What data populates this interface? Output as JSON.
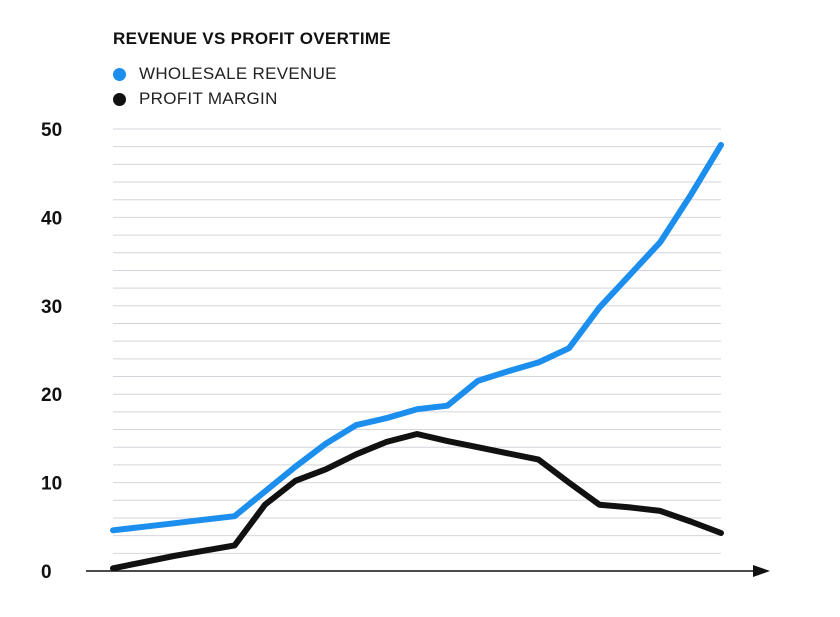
{
  "chart_data": {
    "type": "line",
    "title": "REVENUE VS PROFIT OVERTIME",
    "xlabel": "",
    "ylabel": "",
    "ylim": [
      0,
      50
    ],
    "yticks": [
      0,
      10,
      20,
      30,
      40,
      50
    ],
    "grid": true,
    "legend": "top-left",
    "x": [
      0,
      1,
      2,
      3,
      4,
      5,
      6,
      7,
      8,
      9,
      10,
      11,
      12,
      13,
      14,
      15,
      16,
      17,
      18,
      19,
      20
    ],
    "series": [
      {
        "name": "WHOLESALE REVENUE",
        "color": "#1c8fee",
        "values": [
          4.6,
          5.0,
          5.4,
          5.8,
          6.2,
          9.0,
          11.8,
          14.4,
          16.5,
          17.3,
          18.3,
          18.7,
          21.5,
          22.6,
          23.6,
          25.2,
          29.8,
          33.5,
          37.2,
          42.5,
          48.2
        ]
      },
      {
        "name": "PROFIT MARGIN",
        "color": "#111111",
        "values": [
          0.3,
          1.0,
          1.7,
          2.3,
          2.9,
          7.5,
          10.2,
          11.5,
          13.2,
          14.6,
          15.5,
          14.7,
          14.0,
          13.3,
          12.6,
          10.0,
          7.5,
          7.2,
          6.8,
          5.6,
          4.3
        ]
      }
    ]
  }
}
